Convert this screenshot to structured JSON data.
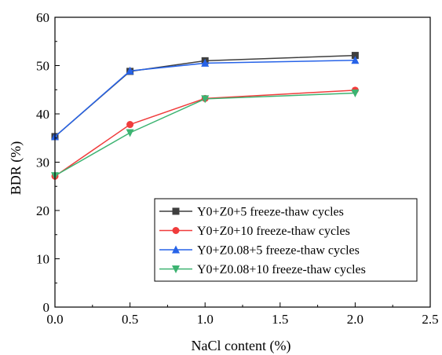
{
  "chart_data": {
    "type": "line",
    "xlabel": "NaCl content (%)",
    "ylabel": "BDR (%)",
    "xlim": [
      0,
      2.5
    ],
    "ylim": [
      0,
      60
    ],
    "x_ticks": [
      0.0,
      0.5,
      1.0,
      1.5,
      2.0,
      2.5
    ],
    "x_tick_labels": [
      "0.0",
      "0.5",
      "1.0",
      "1.5",
      "2.0",
      "2.5"
    ],
    "y_ticks": [
      0,
      10,
      20,
      30,
      40,
      50,
      60
    ],
    "y_tick_labels": [
      "0",
      "10",
      "20",
      "30",
      "40",
      "50",
      "60"
    ],
    "grid": false,
    "legend_position": "bottom-right",
    "series": [
      {
        "name": "Y0+Z0+5 freeze-thaw cycles",
        "color": "#3f3f3f",
        "marker": "square",
        "x": [
          0.0,
          0.5,
          1.0,
          2.0
        ],
        "y": [
          35.3,
          48.8,
          51.0,
          52.1
        ]
      },
      {
        "name": "Y0+Z0+10 freeze-thaw cycles",
        "color": "#f03c3c",
        "marker": "circle",
        "x": [
          0.0,
          0.5,
          1.0,
          2.0
        ],
        "y": [
          27.1,
          37.8,
          43.2,
          44.9
        ]
      },
      {
        "name": "Y0+Z0.08+5 freeze-thaw cycles",
        "color": "#2763e8",
        "marker": "triangle-up",
        "x": [
          0.0,
          0.5,
          1.0,
          2.0
        ],
        "y": [
          35.3,
          48.9,
          50.5,
          51.1
        ]
      },
      {
        "name": "Y0+Z0.08+10 freeze-thaw cycles",
        "color": "#3cb371",
        "marker": "triangle-down",
        "x": [
          0.0,
          0.5,
          1.0,
          2.0
        ],
        "y": [
          27.2,
          36.1,
          43.1,
          44.3
        ]
      }
    ]
  }
}
